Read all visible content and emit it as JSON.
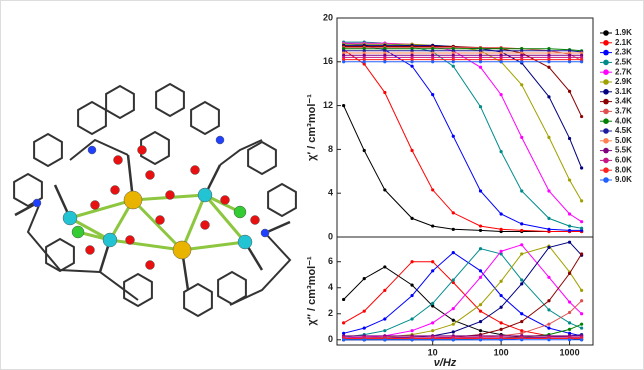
{
  "chart_data": [
    {
      "type": "line",
      "xscale": "log",
      "xlim": [
        0.4,
        2200
      ],
      "ylim": [
        0,
        20
      ],
      "yticks": [
        0,
        4,
        8,
        12,
        16,
        20
      ],
      "ylabel": "χ′ / cm³mol⁻¹",
      "legend": "right",
      "x": [
        0.5,
        1,
        2,
        5,
        10,
        20,
        50,
        100,
        200,
        500,
        1000,
        1500
      ],
      "series": [
        {
          "name": "1.9K",
          "color": "#000000",
          "values": [
            12.0,
            7.9,
            4.3,
            1.7,
            1.0,
            0.7,
            0.6,
            0.5,
            0.5,
            0.5,
            0.5,
            0.5
          ]
        },
        {
          "name": "2.1K",
          "color": "#ff0000",
          "values": [
            17.1,
            15.8,
            13.2,
            7.9,
            4.3,
            2.2,
            1.0,
            0.7,
            0.6,
            0.5,
            0.5,
            0.5
          ]
        },
        {
          "name": "2.3K",
          "color": "#0000ff",
          "values": [
            17.7,
            17.5,
            17.1,
            15.6,
            13.0,
            9.2,
            4.2,
            2.1,
            1.2,
            0.7,
            0.6,
            0.6
          ]
        },
        {
          "name": "2.5K",
          "color": "#008b8b",
          "values": [
            17.8,
            17.8,
            17.7,
            17.4,
            16.9,
            15.6,
            11.9,
            7.8,
            4.2,
            1.7,
            1.0,
            0.8
          ]
        },
        {
          "name": "2.7K",
          "color": "#ff00ff",
          "values": [
            17.7,
            17.7,
            17.7,
            17.6,
            17.4,
            17.0,
            15.5,
            13.0,
            9.1,
            4.2,
            2.1,
            1.4
          ]
        },
        {
          "name": "2.9K",
          "color": "#a0a000",
          "values": [
            17.6,
            17.6,
            17.6,
            17.6,
            17.5,
            17.4,
            17.0,
            16.0,
            13.9,
            9.1,
            5.2,
            3.3
          ]
        },
        {
          "name": "3.1K",
          "color": "#000080",
          "values": [
            17.5,
            17.5,
            17.5,
            17.5,
            17.5,
            17.4,
            17.2,
            16.9,
            15.9,
            12.8,
            9.0,
            6.3
          ]
        },
        {
          "name": "3.4K",
          "color": "#8b0000",
          "values": [
            17.4,
            17.4,
            17.4,
            17.4,
            17.4,
            17.4,
            17.3,
            17.2,
            16.8,
            15.5,
            13.3,
            11.0
          ]
        },
        {
          "name": "3.7K",
          "color": "#e05050",
          "values": [
            17.3,
            17.3,
            17.3,
            17.3,
            17.3,
            17.3,
            17.3,
            17.3,
            17.2,
            17.0,
            16.7,
            16.1
          ]
        },
        {
          "name": "4.0K",
          "color": "#008000",
          "values": [
            17.2,
            17.2,
            17.2,
            17.2,
            17.2,
            17.2,
            17.2,
            17.2,
            17.2,
            17.2,
            17.1,
            17.0
          ]
        },
        {
          "name": "4.5K",
          "color": "#1c1c9c",
          "values": [
            17.0,
            17.0,
            17.0,
            17.0,
            17.0,
            17.0,
            17.0,
            17.0,
            17.0,
            17.0,
            17.0,
            16.9
          ]
        },
        {
          "name": "5.0K",
          "color": "#ff7f50",
          "values": [
            16.8,
            16.8,
            16.8,
            16.8,
            16.8,
            16.8,
            16.8,
            16.8,
            16.8,
            16.8,
            16.8,
            16.8
          ]
        },
        {
          "name": "5.5K",
          "color": "#7f007f",
          "values": [
            16.6,
            16.6,
            16.6,
            16.6,
            16.6,
            16.6,
            16.6,
            16.6,
            16.6,
            16.6,
            16.6,
            16.6
          ]
        },
        {
          "name": "6.0K",
          "color": "#c71585",
          "values": [
            16.4,
            16.4,
            16.4,
            16.4,
            16.4,
            16.4,
            16.4,
            16.4,
            16.4,
            16.4,
            16.4,
            16.4
          ]
        },
        {
          "name": "8.0K",
          "color": "#ff2020",
          "values": [
            16.2,
            16.2,
            16.2,
            16.2,
            16.2,
            16.2,
            16.2,
            16.2,
            16.2,
            16.2,
            16.2,
            16.2
          ]
        },
        {
          "name": "9.0K",
          "color": "#2060ff",
          "values": [
            16.0,
            16.0,
            16.0,
            16.0,
            16.0,
            16.0,
            16.0,
            16.0,
            16.0,
            16.0,
            16.0,
            16.0
          ]
        }
      ]
    },
    {
      "type": "line",
      "xscale": "log",
      "xlim": [
        0.4,
        2200
      ],
      "xticks": [
        10,
        100,
        1000
      ],
      "xlabel": "ν/Hz",
      "ylim": [
        -0.4,
        7.9
      ],
      "yticks": [
        0,
        2,
        4,
        6
      ],
      "ylabel": "χ″ / cm³mol⁻¹",
      "x": [
        0.5,
        1,
        2,
        5,
        10,
        20,
        50,
        100,
        200,
        500,
        1000,
        1500
      ],
      "series": [
        {
          "color": "#000000",
          "values": [
            3.1,
            4.7,
            5.6,
            4.2,
            2.6,
            1.5,
            0.7,
            0.4,
            0.2,
            0.1,
            0.1,
            0.0
          ]
        },
        {
          "color": "#ff0000",
          "values": [
            1.3,
            2.2,
            3.8,
            6.0,
            6.0,
            4.4,
            2.2,
            1.3,
            0.7,
            0.3,
            0.2,
            0.1
          ]
        },
        {
          "color": "#0000ff",
          "values": [
            0.5,
            0.9,
            1.6,
            3.4,
            5.3,
            6.7,
            5.3,
            3.4,
            2.0,
            0.9,
            0.5,
            0.3
          ]
        },
        {
          "color": "#008b8b",
          "values": [
            0.2,
            0.4,
            0.7,
            1.6,
            2.8,
            4.6,
            7.0,
            6.6,
            4.6,
            2.3,
            1.3,
            0.9
          ]
        },
        {
          "color": "#ff00ff",
          "values": [
            0.1,
            0.2,
            0.3,
            0.7,
            1.3,
            2.4,
            4.8,
            6.8,
            7.3,
            4.8,
            2.9,
            2.0
          ]
        },
        {
          "color": "#a0a000",
          "values": [
            0.1,
            0.1,
            0.2,
            0.4,
            0.7,
            1.2,
            2.7,
            4.5,
            6.6,
            7.2,
            5.2,
            3.8
          ]
        },
        {
          "color": "#000080",
          "values": [
            0.0,
            0.0,
            0.1,
            0.2,
            0.3,
            0.6,
            1.4,
            2.5,
            4.3,
            7.1,
            7.5,
            6.5
          ]
        },
        {
          "color": "#8b0000",
          "values": [
            0.0,
            0.0,
            0.0,
            0.1,
            0.1,
            0.2,
            0.4,
            0.8,
            1.4,
            3.0,
            5.1,
            6.6
          ]
        },
        {
          "color": "#e05050",
          "values": [
            0.0,
            0.0,
            0.0,
            0.0,
            0.0,
            0.1,
            0.2,
            0.3,
            0.5,
            1.2,
            2.1,
            3.0
          ]
        },
        {
          "color": "#008000",
          "values": [
            0.0,
            0.0,
            0.0,
            0.0,
            0.0,
            0.0,
            0.1,
            0.1,
            0.2,
            0.4,
            0.8,
            1.2
          ]
        },
        {
          "color": "#1c1c9c",
          "values": [
            0.0,
            0.0,
            0.0,
            0.0,
            0.0,
            0.0,
            0.0,
            0.0,
            0.1,
            0.2,
            0.3,
            0.4
          ]
        },
        {
          "color": "#ff7f50",
          "values": [
            0.1,
            0.1,
            0.1,
            0.1,
            0.1,
            0.1,
            0.1,
            0.1,
            0.1,
            0.1,
            0.1,
            0.2
          ]
        },
        {
          "color": "#7f007f",
          "values": [
            0.3,
            0.3,
            0.3,
            0.3,
            0.3,
            0.3,
            0.3,
            0.3,
            0.3,
            0.3,
            0.3,
            0.3
          ]
        },
        {
          "color": "#c71585",
          "values": [
            0.2,
            0.2,
            0.2,
            0.2,
            0.2,
            0.2,
            0.2,
            0.2,
            0.2,
            0.2,
            0.2,
            0.2
          ]
        },
        {
          "color": "#ff2020",
          "values": [
            0.1,
            0.1,
            0.1,
            0.1,
            0.1,
            0.1,
            0.1,
            0.1,
            0.1,
            0.1,
            0.1,
            0.1
          ]
        },
        {
          "color": "#2060ff",
          "values": [
            0.0,
            0.0,
            0.0,
            0.0,
            0.0,
            0.0,
            0.0,
            0.0,
            0.0,
            0.0,
            0.0,
            0.0
          ]
        }
      ]
    }
  ]
}
